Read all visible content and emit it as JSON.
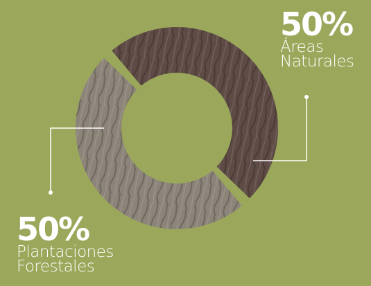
{
  "chart_data": {
    "type": "donut",
    "categories": [
      "Áreas Naturales",
      "Plantaciones Forestales"
    ],
    "values": [
      50,
      50
    ],
    "value_labels": [
      "50%",
      "50%"
    ],
    "colors": [
      "#5f4b45",
      "#8c8479"
    ]
  }
}
